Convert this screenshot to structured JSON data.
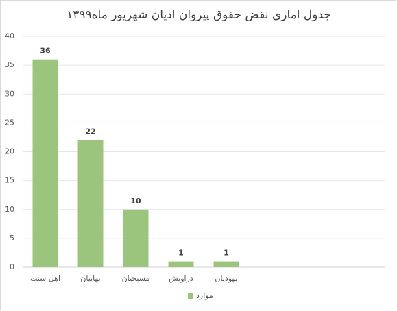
{
  "chart_data": {
    "type": "bar",
    "title": "جدول اماری نقض حقوق پیروان ادیان شهریور ماه۱۳۹۹",
    "categories": [
      "اهل سنت",
      "بهاییان",
      "مسیحیان",
      "دراویش",
      "یهودیان",
      null,
      null,
      null
    ],
    "series": [
      {
        "name": "موارد",
        "color": "#9bc47c",
        "values": [
          36,
          22,
          10,
          1,
          1,
          null,
          null,
          null
        ]
      }
    ],
    "ylim": [
      0,
      40
    ],
    "yticks": [
      0,
      5,
      10,
      15,
      20,
      25,
      30,
      35,
      40
    ],
    "grid": true,
    "legend": "bottom"
  }
}
